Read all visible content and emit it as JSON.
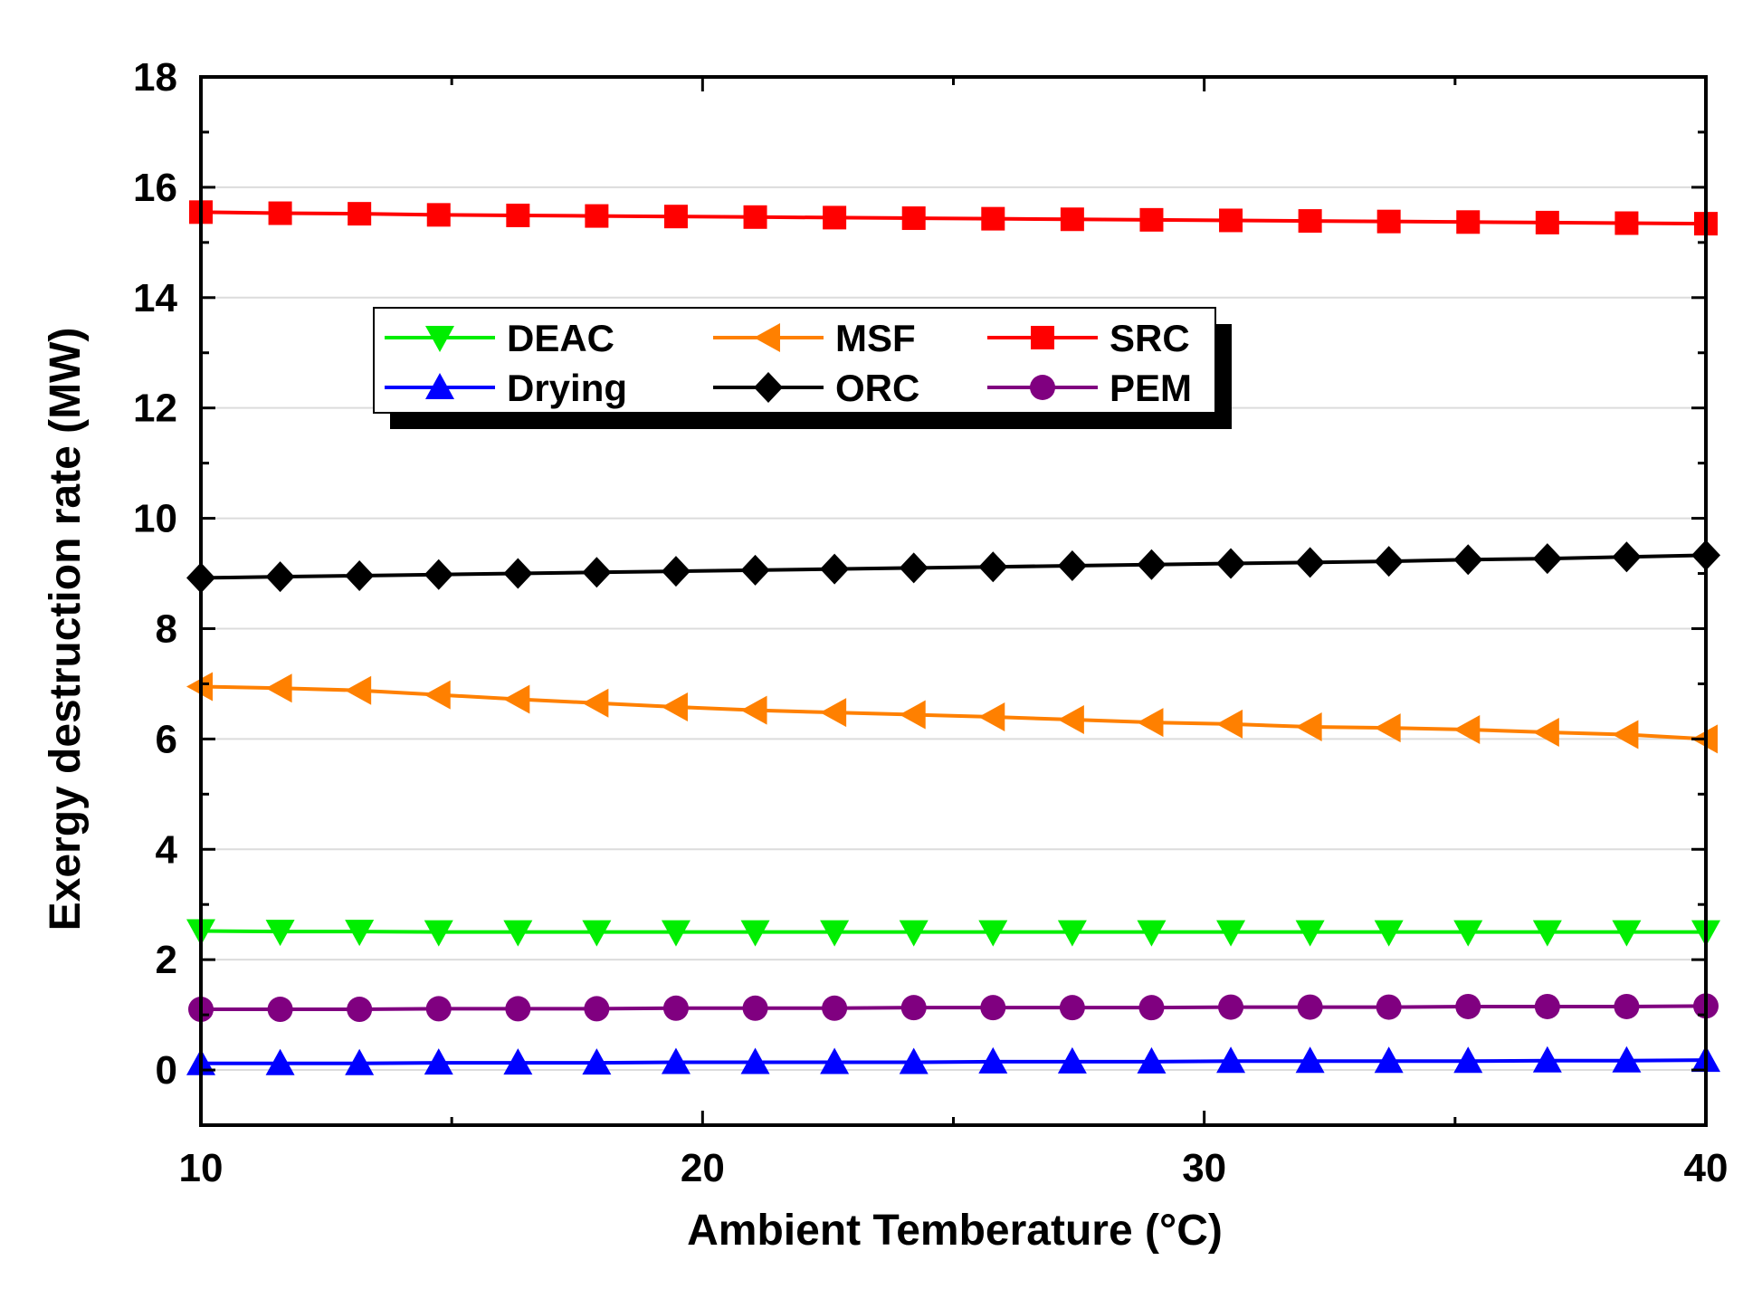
{
  "chart_data": {
    "type": "line",
    "title": "",
    "xlabel": "Ambient Temberature (°C)",
    "ylabel": "Exergy destruction rate (MW)",
    "xlim": [
      10,
      40
    ],
    "ylim": [
      -1,
      18
    ],
    "xticks": [
      10,
      20,
      30,
      40
    ],
    "yticks": [
      0,
      2,
      4,
      6,
      8,
      10,
      12,
      14,
      16,
      18
    ],
    "grid": "horizontal",
    "legend_position": "upper-left",
    "x": [
      10.0,
      11.58,
      13.16,
      14.74,
      16.32,
      17.89,
      19.47,
      21.05,
      22.63,
      24.21,
      25.79,
      27.37,
      28.95,
      30.53,
      32.11,
      33.68,
      35.26,
      36.84,
      38.42,
      40.0
    ],
    "series": [
      {
        "name": "DEAC",
        "color": "#00ee00",
        "marker": "triangle-down",
        "values": [
          2.52,
          2.51,
          2.51,
          2.5,
          2.5,
          2.5,
          2.5,
          2.5,
          2.5,
          2.5,
          2.5,
          2.5,
          2.5,
          2.5,
          2.5,
          2.5,
          2.5,
          2.5,
          2.5,
          2.5
        ]
      },
      {
        "name": "MSF",
        "color": "#ff8000",
        "marker": "triangle-left",
        "values": [
          6.95,
          6.92,
          6.88,
          6.8,
          6.72,
          6.65,
          6.58,
          6.52,
          6.48,
          6.44,
          6.4,
          6.35,
          6.3,
          6.27,
          6.22,
          6.2,
          6.17,
          6.12,
          6.08,
          6.0
        ]
      },
      {
        "name": "SRC",
        "color": "#ff0000",
        "marker": "square",
        "values": [
          15.55,
          15.53,
          15.52,
          15.5,
          15.49,
          15.48,
          15.47,
          15.46,
          15.45,
          15.44,
          15.43,
          15.42,
          15.41,
          15.4,
          15.39,
          15.38,
          15.37,
          15.36,
          15.35,
          15.34
        ]
      },
      {
        "name": "Drying",
        "color": "#0000ff",
        "marker": "triangle-up",
        "values": [
          0.12,
          0.12,
          0.12,
          0.13,
          0.13,
          0.13,
          0.14,
          0.14,
          0.14,
          0.14,
          0.15,
          0.15,
          0.15,
          0.16,
          0.16,
          0.16,
          0.16,
          0.17,
          0.17,
          0.18
        ]
      },
      {
        "name": "ORC",
        "color": "#000000",
        "marker": "diamond",
        "values": [
          8.92,
          8.94,
          8.96,
          8.98,
          9.0,
          9.02,
          9.04,
          9.06,
          9.08,
          9.1,
          9.12,
          9.14,
          9.16,
          9.18,
          9.2,
          9.22,
          9.25,
          9.27,
          9.3,
          9.33
        ]
      },
      {
        "name": "PEM",
        "color": "#800080",
        "marker": "circle",
        "values": [
          1.1,
          1.1,
          1.1,
          1.11,
          1.11,
          1.11,
          1.12,
          1.12,
          1.12,
          1.13,
          1.13,
          1.13,
          1.13,
          1.14,
          1.14,
          1.14,
          1.15,
          1.15,
          1.15,
          1.16
        ]
      }
    ],
    "legend_order": [
      "DEAC",
      "MSF",
      "SRC",
      "Drying",
      "ORC",
      "PEM"
    ]
  }
}
